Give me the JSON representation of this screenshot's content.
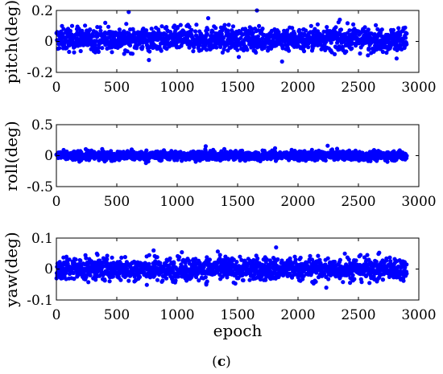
{
  "chart_data": [
    {
      "type": "scatter",
      "ylabel": "pitch(deg)",
      "xlabel": "",
      "xlim": [
        0,
        3000
      ],
      "ylim": [
        -0.2,
        0.2
      ],
      "xticks": [
        "0",
        "500",
        "1000",
        "1500",
        "2000",
        "2500",
        "3000"
      ],
      "yticks": [
        "0.2",
        "0",
        "-0.2"
      ],
      "ytick_values": [
        0.2,
        0,
        -0.2
      ],
      "marker_color": "#0000ff",
      "series": [
        {
          "x_range": [
            1,
            2900
          ],
          "band_center": 0.015,
          "band_half_width": 0.08,
          "y": [
            0.05,
            -0.02,
            0.08,
            0.01,
            -0.04,
            0.12,
            0.03,
            -0.08,
            0.19,
            0.02,
            -0.12,
            0.06,
            0.0,
            -0.03,
            0.1,
            0.04,
            -0.06,
            0.15,
            -0.01,
            0.07,
            -0.1,
            0.03,
            0.2,
            -0.02,
            0.05,
            -0.13,
            0.09,
            0.0,
            -0.05,
            0.11,
            0.02,
            -0.07,
            0.14,
            -0.03,
            0.06,
            -0.09,
            0.04,
            0.01,
            -0.11,
            0.08
          ]
        }
      ]
    },
    {
      "type": "scatter",
      "ylabel": "roll(deg)",
      "xlabel": "",
      "xlim": [
        0,
        3000
      ],
      "ylim": [
        -0.5,
        0.5
      ],
      "xticks": [
        "0",
        "500",
        "1000",
        "1500",
        "2000",
        "2500",
        "3000"
      ],
      "yticks": [
        "0.5",
        "0",
        "-0.5"
      ],
      "ytick_values": [
        0.5,
        0,
        -0.5
      ],
      "marker_color": "#0000ff",
      "series": [
        {
          "x_range": [
            1,
            2900
          ],
          "band_center": 0.0,
          "band_half_width": 0.08,
          "y": [
            0.05,
            -0.04,
            0.08,
            0.02,
            -0.07,
            0.1,
            -0.12,
            0.06,
            0.0,
            -0.03,
            0.15,
            -0.05,
            0.07,
            0.03,
            -0.09,
            0.12,
            -0.02,
            0.04,
            -0.06,
            0.16,
            0.01,
            -0.08,
            0.09,
            -0.04,
            0.02
          ]
        }
      ]
    },
    {
      "type": "scatter",
      "ylabel": "yaw(deg)",
      "xlabel": "epoch",
      "xlim": [
        0,
        3000
      ],
      "ylim": [
        -0.1,
        0.1
      ],
      "xticks": [
        "0",
        "500",
        "1000",
        "1500",
        "2000",
        "2500",
        "3000"
      ],
      "yticks": [
        "0.1",
        "0",
        "-0.1"
      ],
      "ytick_values": [
        0.1,
        0,
        -0.1
      ],
      "marker_color": "#0000ff",
      "series": [
        {
          "x_range": [
            1,
            2900
          ],
          "band_center": 0.0,
          "band_half_width": 0.04,
          "y": [
            0.03,
            -0.02,
            0.05,
            0.01,
            -0.04,
            0.06,
            -0.01,
            0.02,
            -0.05,
            0.04,
            0.0,
            -0.03,
            0.07,
            -0.02,
            0.03,
            -0.06,
            0.05,
            0.01,
            -0.04,
            0.02
          ]
        }
      ]
    }
  ],
  "caption": {
    "open": "(",
    "letter": "c",
    "close": ")"
  }
}
